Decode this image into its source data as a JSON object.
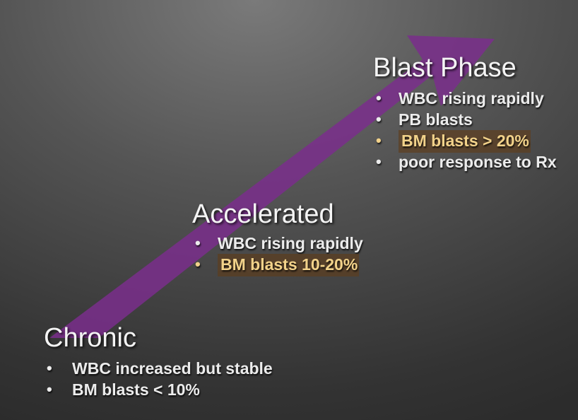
{
  "colors": {
    "arrow": "#7a2e8c",
    "highlight_text": "#f2d28a",
    "highlight_bg": "#5f3c19"
  },
  "phases": {
    "blast": {
      "title": "Blast Phase",
      "bullets": [
        {
          "text": "WBC rising rapidly",
          "highlighted": false
        },
        {
          "text": "PB blasts",
          "highlighted": false
        },
        {
          "text": "BM blasts > 20%",
          "highlighted": true
        },
        {
          "text": "poor response to Rx",
          "highlighted": false
        }
      ]
    },
    "accelerated": {
      "title": "Accelerated",
      "bullets": [
        {
          "text": "WBC rising rapidly",
          "highlighted": false
        },
        {
          "text": "BM blasts 10-20%",
          "highlighted": true
        }
      ]
    },
    "chronic": {
      "title": "Chronic",
      "bullets": [
        {
          "text": "WBC increased but stable",
          "highlighted": false
        },
        {
          "text": "BM blasts < 10%",
          "highlighted": false
        }
      ]
    }
  }
}
